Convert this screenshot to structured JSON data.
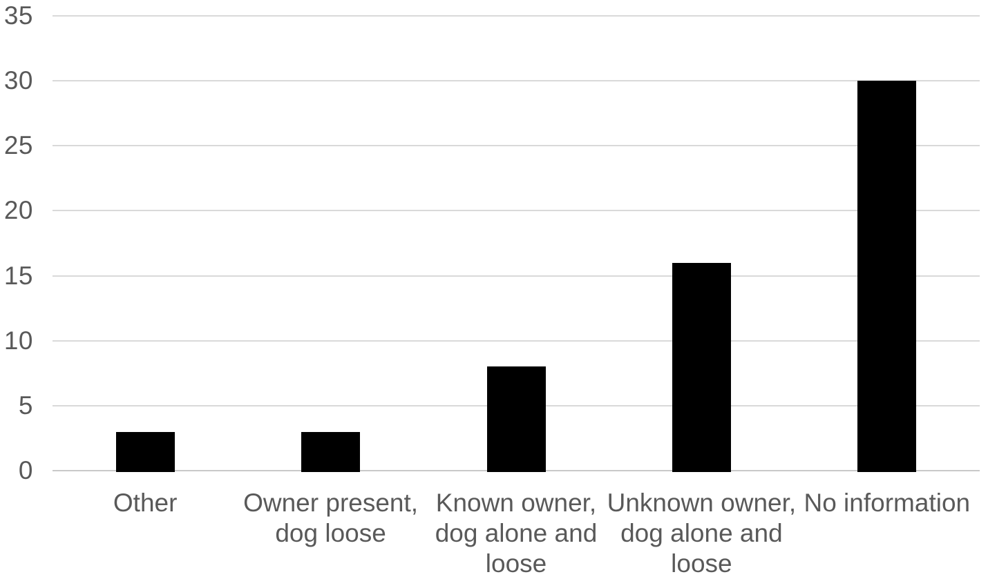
{
  "chart_data": {
    "type": "bar",
    "title": "",
    "xlabel": "",
    "ylabel": "",
    "categories": [
      "Other",
      "Owner present, dog loose",
      "Known owner, dog alone and loose",
      "Unknown owner, dog alone and loose",
      "No information"
    ],
    "values": [
      3,
      3,
      8,
      16,
      30
    ],
    "tick_label_lines": [
      [
        "Other"
      ],
      [
        "Owner present,",
        "dog loose"
      ],
      [
        "Known owner,",
        "dog alone and",
        "loose"
      ],
      [
        "Unknown owner,",
        "dog alone and",
        "loose"
      ],
      [
        "No information"
      ]
    ],
    "ylim": [
      0,
      35
    ],
    "yticks": [
      0,
      5,
      10,
      15,
      20,
      25,
      30,
      35
    ],
    "grid": true,
    "legend": false,
    "colors": {
      "bar": "#000000",
      "gridline": "#d9d9d9",
      "axis_line": "#c8c8c8",
      "tick_label": "#595959",
      "background": "#ffffff"
    }
  }
}
